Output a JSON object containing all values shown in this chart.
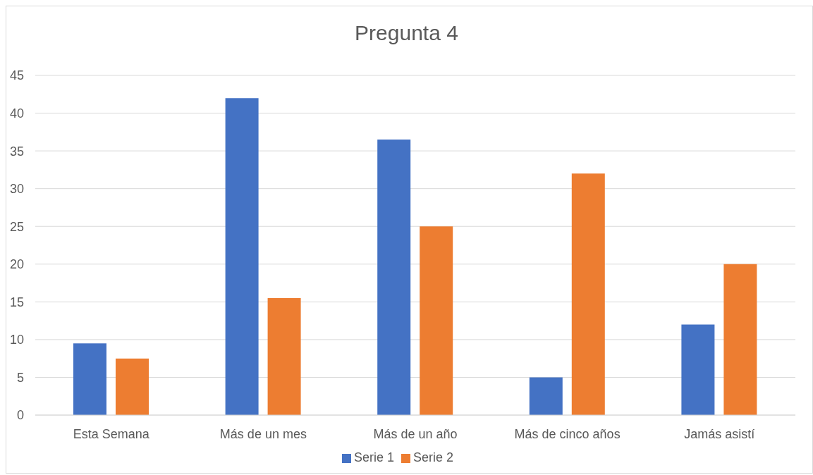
{
  "chart_data": {
    "type": "bar",
    "title": "Pregunta 4",
    "categories": [
      "Esta Semana",
      "Más de un mes",
      "Más de un año",
      "Más de cinco años",
      "Jamás asistí"
    ],
    "series": [
      {
        "name": "Serie 1",
        "color": "#4472c4",
        "values": [
          9.5,
          42,
          36.5,
          5,
          12
        ]
      },
      {
        "name": "Serie 2",
        "color": "#ed7d31",
        "values": [
          7.5,
          15.5,
          25,
          32,
          20
        ]
      }
    ],
    "ylim": [
      0,
      45
    ],
    "yticks": [
      0,
      5,
      10,
      15,
      20,
      25,
      30,
      35,
      40,
      45
    ],
    "grid": "y",
    "legend": "bottom"
  }
}
